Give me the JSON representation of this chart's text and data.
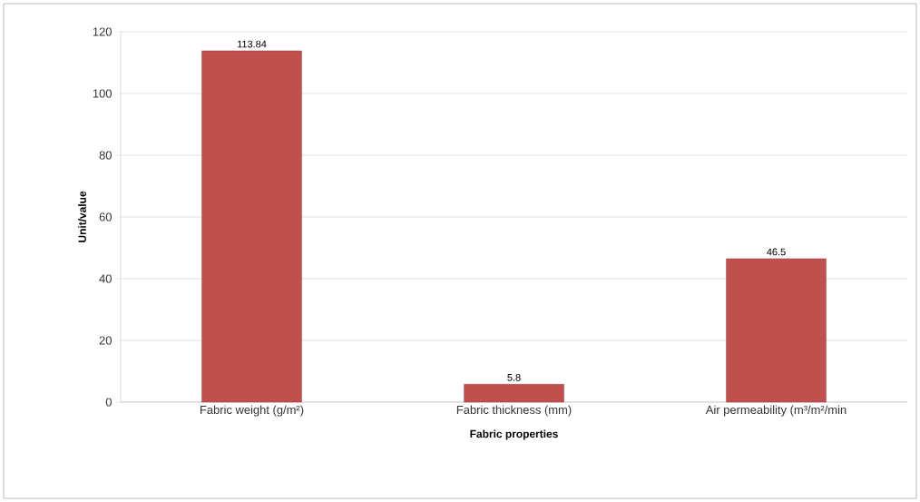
{
  "chart_data": {
    "type": "bar",
    "xlabel": "Fabric properties",
    "ylabel": "Unit/value",
    "categories": [
      "Fabric weight (g/m²)",
      "Fabric thickness (mm)",
      "Air permeability (m³/m²/min"
    ],
    "values": [
      113.84,
      5.8,
      46.5
    ],
    "color": "#c0504d",
    "ylim": [
      0,
      120
    ],
    "yticks": [
      0,
      20,
      40,
      60,
      80,
      100,
      120
    ],
    "grid": "y",
    "data_labels": true
  }
}
